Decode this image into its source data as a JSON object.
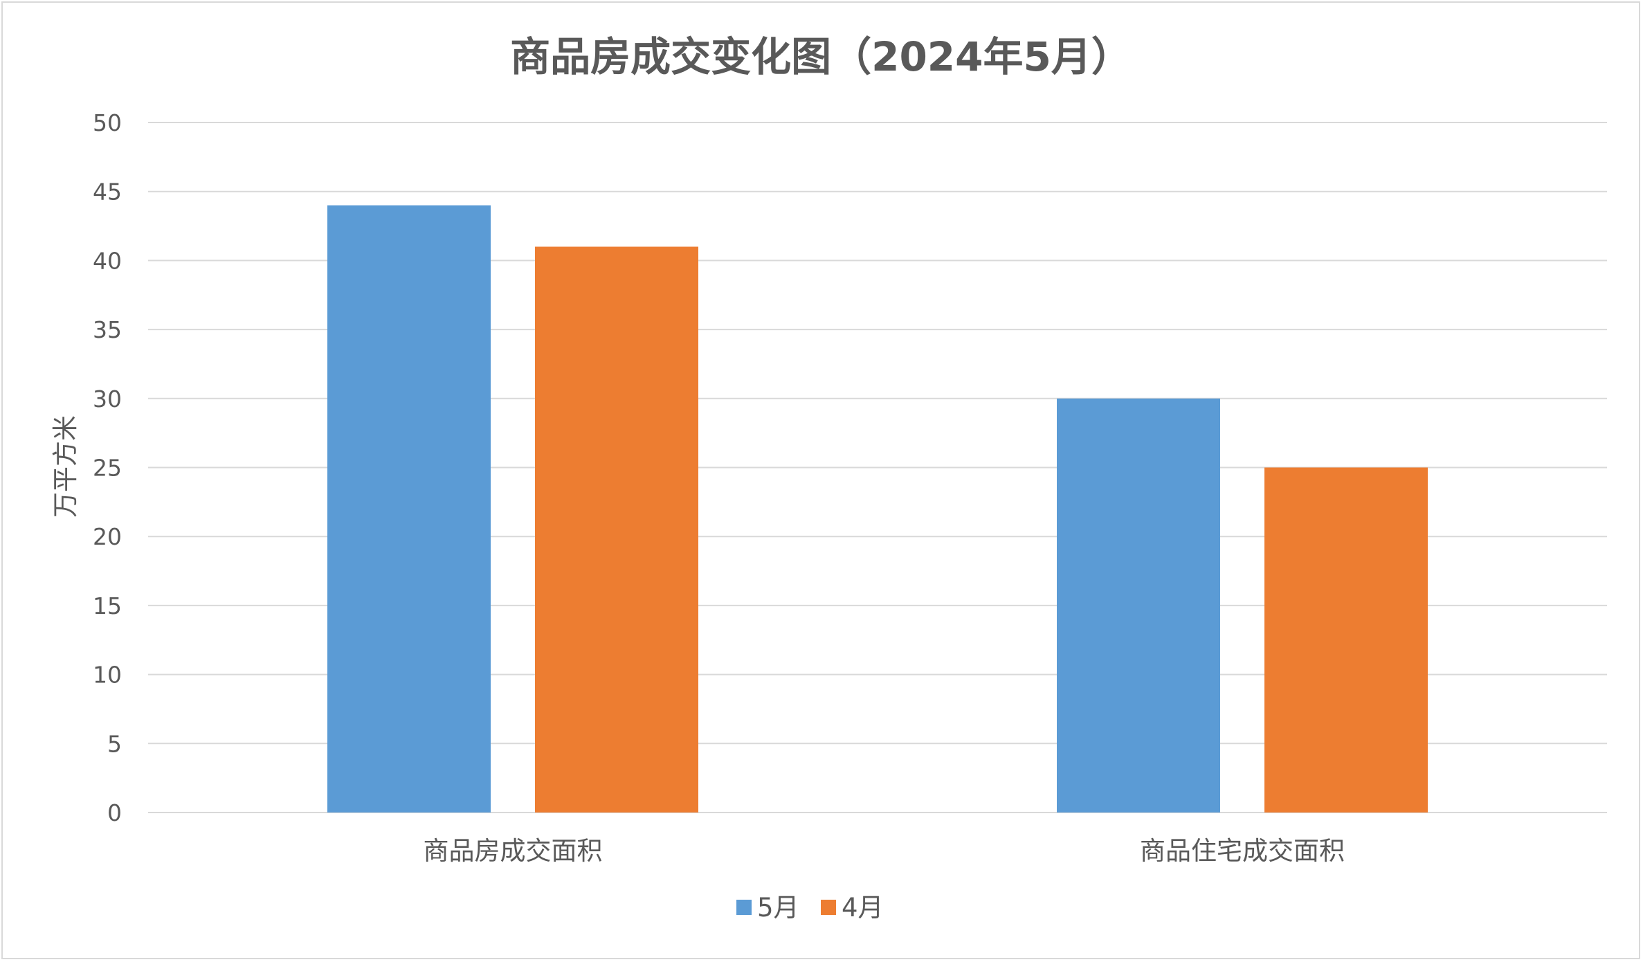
{
  "chart_data": {
    "type": "bar",
    "title": "商品房成交变化图（2024年5月）",
    "ylabel": "万平方米",
    "xlabel": "",
    "categories": [
      "商品房成交面积",
      "商品住宅成交面积"
    ],
    "series": [
      {
        "name": "5月",
        "color": "#5B9BD5",
        "values": [
          44,
          30
        ]
      },
      {
        "name": "4月",
        "color": "#ED7D31",
        "values": [
          41,
          25
        ]
      }
    ],
    "ylim": [
      0,
      50
    ],
    "yticks": [
      0,
      5,
      10,
      15,
      20,
      25,
      30,
      35,
      40,
      45,
      50
    ],
    "grid": true,
    "legend_position": "bottom"
  }
}
